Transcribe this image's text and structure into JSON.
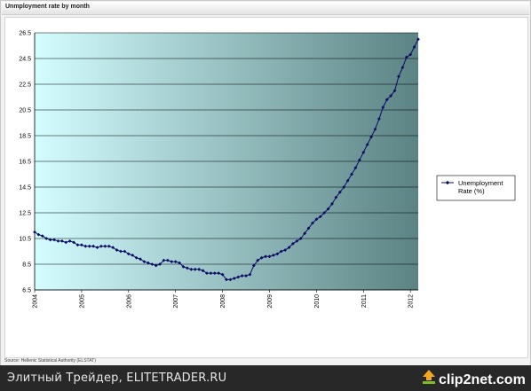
{
  "header": {
    "title": "Unmployment rate by month"
  },
  "source": "Source: Hellenic Statistical Authority (ELSTAT)",
  "footer": {
    "text": "Элитный Трейдер, ELITETRADER.RU",
    "logo_text": "clip2net.com",
    "logo_icon": "upload-arrow-icon"
  },
  "colors": {
    "plot_gradient_start": "#d4fdff",
    "plot_gradient_end": "#5b8384",
    "series": "#0a0a66",
    "grid": "#000000"
  },
  "chart_data": {
    "type": "line",
    "title": "Unmployment rate by month",
    "xlabel": "",
    "ylabel": "",
    "ylim": [
      6.5,
      26.5
    ],
    "yticks": [
      6.5,
      8.5,
      10.5,
      12.5,
      14.5,
      16.5,
      18.5,
      20.5,
      22.5,
      24.5,
      26.5
    ],
    "xticks": [
      "2004",
      "2005",
      "2006",
      "2007",
      "2008",
      "2009",
      "2010",
      "2011",
      "2012"
    ],
    "x_start": "2004-01",
    "grid": "horizontal",
    "legend_position": "right",
    "series": [
      {
        "name": "Unemployment Rate (%)",
        "values": [
          11.0,
          10.8,
          10.7,
          10.5,
          10.4,
          10.4,
          10.3,
          10.3,
          10.2,
          10.3,
          10.2,
          10.0,
          10.0,
          9.9,
          9.9,
          9.9,
          9.8,
          9.9,
          9.9,
          9.9,
          9.8,
          9.6,
          9.5,
          9.5,
          9.3,
          9.2,
          9.0,
          8.9,
          8.7,
          8.6,
          8.5,
          8.4,
          8.5,
          8.8,
          8.8,
          8.7,
          8.7,
          8.6,
          8.3,
          8.2,
          8.1,
          8.1,
          8.1,
          8.0,
          7.8,
          7.8,
          7.8,
          7.8,
          7.7,
          7.3,
          7.3,
          7.4,
          7.5,
          7.6,
          7.6,
          7.7,
          8.4,
          8.8,
          9.0,
          9.1,
          9.1,
          9.2,
          9.3,
          9.5,
          9.6,
          9.8,
          10.1,
          10.3,
          10.5,
          10.9,
          11.3,
          11.7,
          12.0,
          12.2,
          12.5,
          12.8,
          13.2,
          13.7,
          14.1,
          14.5,
          15.0,
          15.5,
          16.0,
          16.6,
          17.2,
          17.8,
          18.4,
          19.0,
          19.8,
          20.7,
          21.3,
          21.6,
          22.0,
          23.1,
          23.8,
          24.6,
          24.8,
          25.4,
          26.0
        ]
      }
    ]
  }
}
